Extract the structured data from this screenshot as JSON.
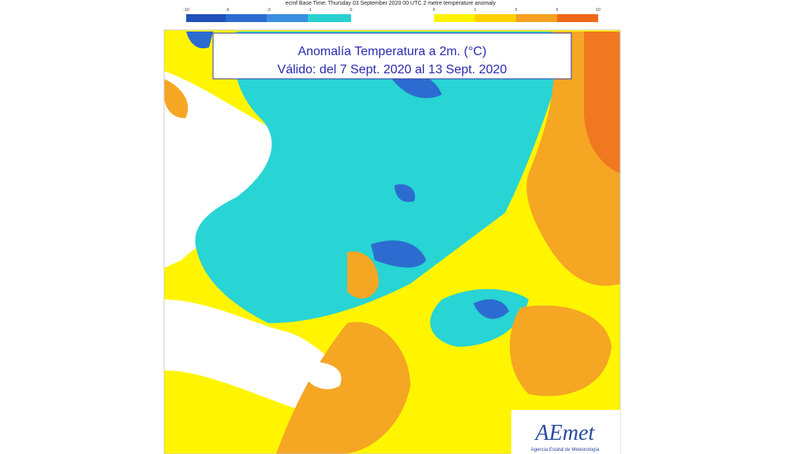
{
  "header": {
    "text": "ecmf  Base Time: Thursday 03 September 2020 00 UTC 2 metre temperature anomaly"
  },
  "legend": {
    "cold_ticks": [
      "-10",
      "-6",
      "-3",
      "-1",
      "0"
    ],
    "warm_ticks": [
      "0",
      "1",
      "3",
      "6",
      "10"
    ]
  },
  "title": {
    "line1": "Anomalía Temperatura a 2m. (°C)",
    "line2": "Válido: del 7 Sept. 2020 al 13 Sept. 2020"
  },
  "logo": {
    "name": "AEmet",
    "subtitle": "Agencia Estatal de Meteorología"
  }
}
